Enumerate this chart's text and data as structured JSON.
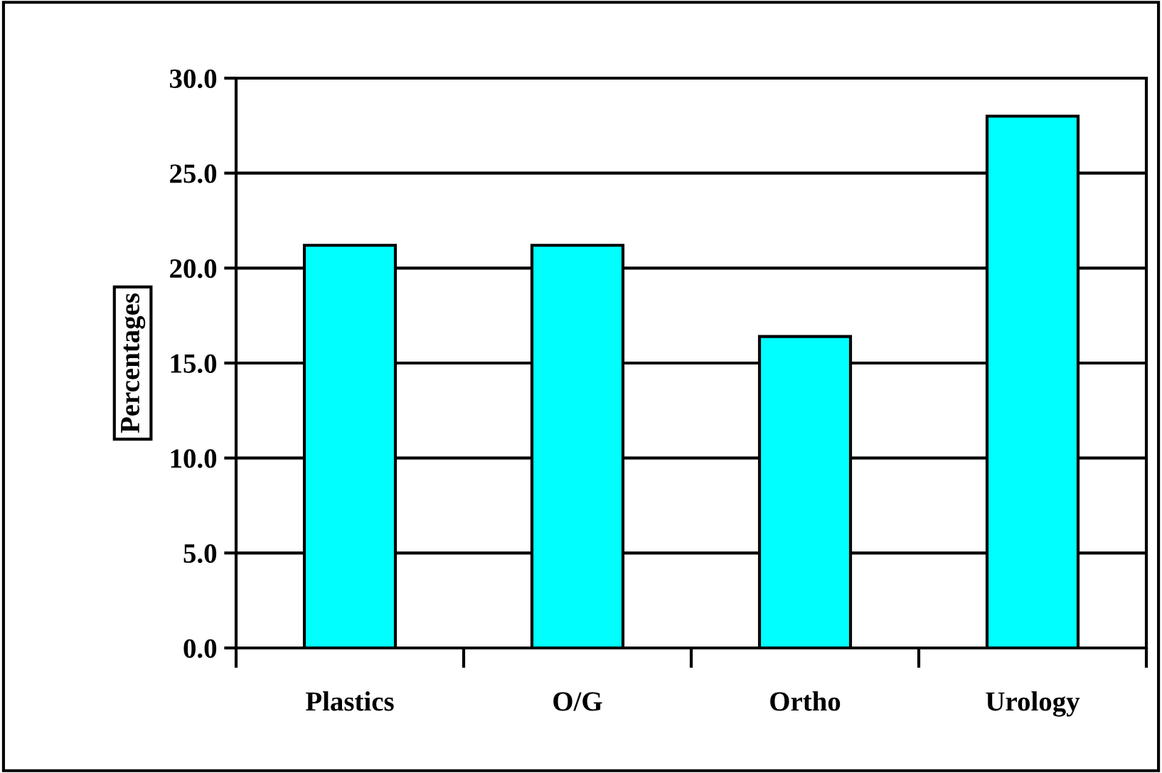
{
  "chart_data": {
    "type": "bar",
    "ylabel": "Percentages",
    "categories": [
      "Plastics",
      "O/G",
      "Ortho",
      "Urology"
    ],
    "values": [
      21.2,
      21.2,
      16.4,
      28.0
    ],
    "color": "#00ffff",
    "ylim": [
      0,
      30
    ],
    "yticks": [
      {
        "value": 0,
        "label": "0.0"
      },
      {
        "value": 5,
        "label": "5.0"
      },
      {
        "value": 10,
        "label": "10.0"
      },
      {
        "value": 15,
        "label": "15.0"
      },
      {
        "value": 20,
        "label": "20.0"
      },
      {
        "value": 25,
        "label": "25.0"
      },
      {
        "value": 30,
        "label": "30.0"
      }
    ],
    "grid": "y",
    "legend": false
  }
}
